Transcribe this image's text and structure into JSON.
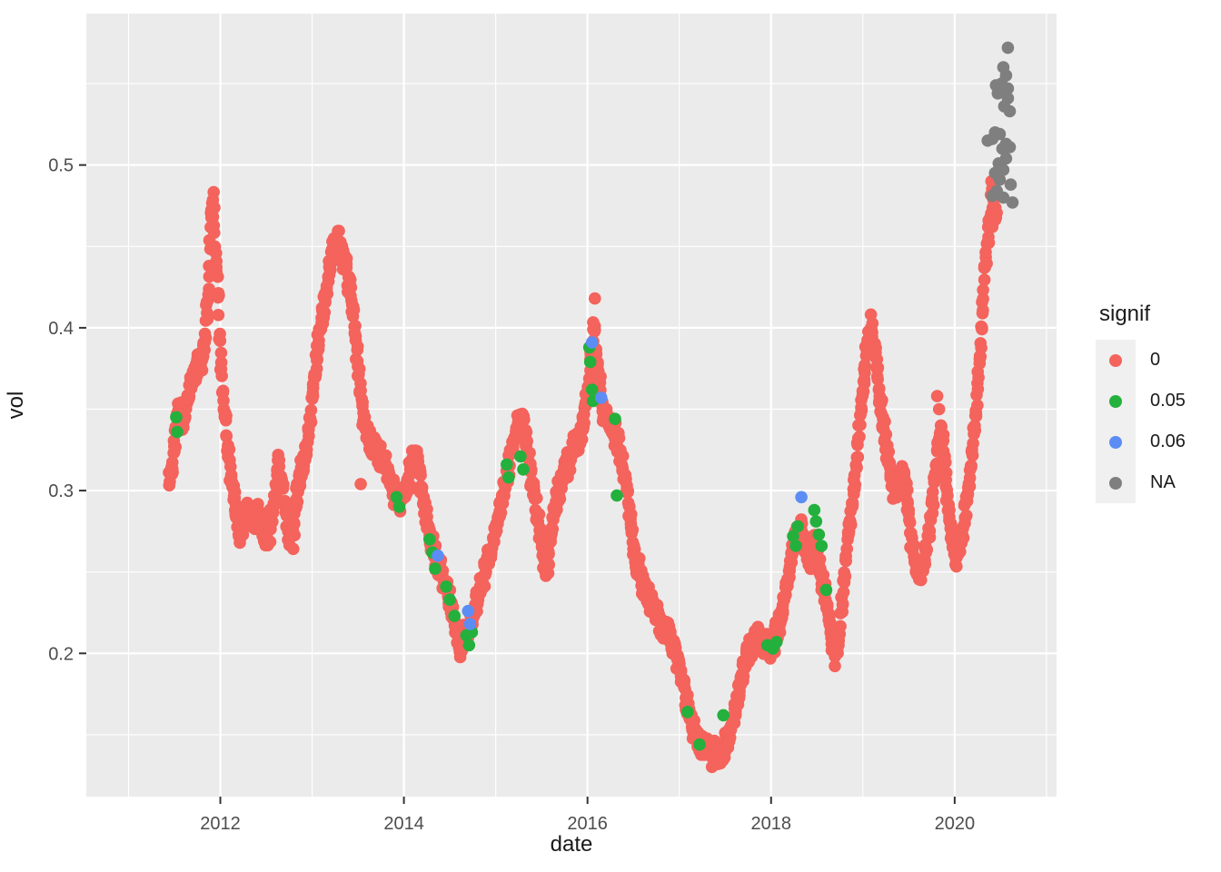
{
  "chart_data": {
    "type": "scatter",
    "title": "",
    "xlabel": "date",
    "ylabel": "vol",
    "legend_title": "signif",
    "legend_position": "right",
    "grid": true,
    "x_tick_labels": [
      "2012",
      "2014",
      "2016",
      "2018",
      "2020"
    ],
    "x_tick_values": [
      2012,
      2014,
      2016,
      2018,
      2020
    ],
    "x_minor_ticks": [
      2011,
      2013,
      2015,
      2017,
      2019,
      2021
    ],
    "y_tick_labels": [
      "0.2",
      "0.3",
      "0.4",
      "0.5"
    ],
    "y_tick_values": [
      0.2,
      0.3,
      0.4,
      0.5
    ],
    "y_minor_ticks": [
      0.15,
      0.25,
      0.35,
      0.45,
      0.55
    ],
    "xlim": [
      2010.54,
      2021.11
    ],
    "ylim": [
      0.112,
      0.593
    ],
    "series": [
      {
        "name": "0",
        "color": "#f4635c",
        "trend_keypoints": [
          [
            2011.44,
            0.306
          ],
          [
            2011.48,
            0.32
          ],
          [
            2011.52,
            0.34
          ],
          [
            2011.56,
            0.352
          ],
          [
            2011.6,
            0.345
          ],
          [
            2011.64,
            0.355
          ],
          [
            2011.68,
            0.365
          ],
          [
            2011.72,
            0.372
          ],
          [
            2011.76,
            0.383
          ],
          [
            2011.8,
            0.378
          ],
          [
            2011.84,
            0.4
          ],
          [
            2011.87,
            0.42
          ],
          [
            2011.9,
            0.47
          ],
          [
            2011.92,
            0.48
          ],
          [
            2011.94,
            0.455
          ],
          [
            2011.97,
            0.43
          ],
          [
            2012.0,
            0.385
          ],
          [
            2012.04,
            0.355
          ],
          [
            2012.08,
            0.33
          ],
          [
            2012.12,
            0.305
          ],
          [
            2012.17,
            0.288
          ],
          [
            2012.21,
            0.272
          ],
          [
            2012.28,
            0.29
          ],
          [
            2012.35,
            0.28
          ],
          [
            2012.42,
            0.287
          ],
          [
            2012.5,
            0.267
          ],
          [
            2012.57,
            0.285
          ],
          [
            2012.63,
            0.318
          ],
          [
            2012.68,
            0.305
          ],
          [
            2012.73,
            0.277
          ],
          [
            2012.78,
            0.267
          ],
          [
            2012.83,
            0.295
          ],
          [
            2012.88,
            0.313
          ],
          [
            2012.94,
            0.325
          ],
          [
            2013.0,
            0.355
          ],
          [
            2013.05,
            0.383
          ],
          [
            2013.1,
            0.402
          ],
          [
            2013.15,
            0.422
          ],
          [
            2013.2,
            0.44
          ],
          [
            2013.26,
            0.456
          ],
          [
            2013.31,
            0.448
          ],
          [
            2013.36,
            0.44
          ],
          [
            2013.41,
            0.425
          ],
          [
            2013.46,
            0.403
          ],
          [
            2013.51,
            0.37
          ],
          [
            2013.56,
            0.342
          ],
          [
            2013.62,
            0.33
          ],
          [
            2013.7,
            0.326
          ],
          [
            2013.78,
            0.318
          ],
          [
            2013.85,
            0.308
          ],
          [
            2013.92,
            0.296
          ],
          [
            2014.0,
            0.296
          ],
          [
            2014.06,
            0.308
          ],
          [
            2014.12,
            0.322
          ],
          [
            2014.16,
            0.315
          ],
          [
            2014.2,
            0.297
          ],
          [
            2014.25,
            0.283
          ],
          [
            2014.3,
            0.268
          ],
          [
            2014.36,
            0.258
          ],
          [
            2014.42,
            0.25
          ],
          [
            2014.47,
            0.238
          ],
          [
            2014.52,
            0.228
          ],
          [
            2014.57,
            0.213
          ],
          [
            2014.62,
            0.204
          ],
          [
            2014.67,
            0.212
          ],
          [
            2014.72,
            0.218
          ],
          [
            2014.78,
            0.228
          ],
          [
            2014.85,
            0.242
          ],
          [
            2014.92,
            0.256
          ],
          [
            2014.98,
            0.27
          ],
          [
            2015.05,
            0.29
          ],
          [
            2015.12,
            0.31
          ],
          [
            2015.18,
            0.328
          ],
          [
            2015.24,
            0.34
          ],
          [
            2015.3,
            0.345
          ],
          [
            2015.34,
            0.328
          ],
          [
            2015.38,
            0.312
          ],
          [
            2015.44,
            0.29
          ],
          [
            2015.5,
            0.268
          ],
          [
            2015.55,
            0.25
          ],
          [
            2015.6,
            0.27
          ],
          [
            2015.66,
            0.295
          ],
          [
            2015.73,
            0.308
          ],
          [
            2015.8,
            0.318
          ],
          [
            2015.88,
            0.328
          ],
          [
            2015.95,
            0.34
          ],
          [
            2016.0,
            0.36
          ],
          [
            2016.04,
            0.382
          ],
          [
            2016.07,
            0.4
          ],
          [
            2016.1,
            0.378
          ],
          [
            2016.14,
            0.36
          ],
          [
            2016.18,
            0.348
          ],
          [
            2016.25,
            0.342
          ],
          [
            2016.32,
            0.333
          ],
          [
            2016.38,
            0.315
          ],
          [
            2016.43,
            0.3
          ],
          [
            2016.48,
            0.278
          ],
          [
            2016.53,
            0.257
          ],
          [
            2016.6,
            0.243
          ],
          [
            2016.68,
            0.232
          ],
          [
            2016.76,
            0.222
          ],
          [
            2016.84,
            0.215
          ],
          [
            2016.92,
            0.207
          ],
          [
            2016.98,
            0.196
          ],
          [
            2017.03,
            0.183
          ],
          [
            2017.08,
            0.17
          ],
          [
            2017.13,
            0.158
          ],
          [
            2017.2,
            0.148
          ],
          [
            2017.28,
            0.142
          ],
          [
            2017.36,
            0.139
          ],
          [
            2017.44,
            0.137
          ],
          [
            2017.5,
            0.143
          ],
          [
            2017.56,
            0.152
          ],
          [
            2017.62,
            0.168
          ],
          [
            2017.68,
            0.185
          ],
          [
            2017.74,
            0.198
          ],
          [
            2017.8,
            0.205
          ],
          [
            2017.86,
            0.21
          ],
          [
            2017.92,
            0.207
          ],
          [
            2017.98,
            0.203
          ],
          [
            2018.04,
            0.207
          ],
          [
            2018.1,
            0.22
          ],
          [
            2018.16,
            0.24
          ],
          [
            2018.22,
            0.26
          ],
          [
            2018.27,
            0.272
          ],
          [
            2018.32,
            0.277
          ],
          [
            2018.37,
            0.265
          ],
          [
            2018.42,
            0.255
          ],
          [
            2018.46,
            0.27
          ],
          [
            2018.5,
            0.262
          ],
          [
            2018.55,
            0.247
          ],
          [
            2018.6,
            0.232
          ],
          [
            2018.65,
            0.215
          ],
          [
            2018.7,
            0.199
          ],
          [
            2018.74,
            0.208
          ],
          [
            2018.78,
            0.235
          ],
          [
            2018.82,
            0.262
          ],
          [
            2018.86,
            0.283
          ],
          [
            2018.9,
            0.3
          ],
          [
            2018.95,
            0.33
          ],
          [
            2019.0,
            0.362
          ],
          [
            2019.04,
            0.385
          ],
          [
            2019.08,
            0.402
          ],
          [
            2019.12,
            0.388
          ],
          [
            2019.16,
            0.37
          ],
          [
            2019.2,
            0.352
          ],
          [
            2019.24,
            0.335
          ],
          [
            2019.28,
            0.317
          ],
          [
            2019.33,
            0.303
          ],
          [
            2019.38,
            0.3
          ],
          [
            2019.43,
            0.312
          ],
          [
            2019.47,
            0.3
          ],
          [
            2019.52,
            0.275
          ],
          [
            2019.57,
            0.255
          ],
          [
            2019.62,
            0.247
          ],
          [
            2019.67,
            0.258
          ],
          [
            2019.72,
            0.275
          ],
          [
            2019.77,
            0.3
          ],
          [
            2019.82,
            0.325
          ],
          [
            2019.86,
            0.34
          ],
          [
            2019.9,
            0.31
          ],
          [
            2019.94,
            0.285
          ],
          [
            2019.98,
            0.268
          ],
          [
            2020.02,
            0.258
          ],
          [
            2020.06,
            0.266
          ],
          [
            2020.1,
            0.28
          ],
          [
            2020.14,
            0.298
          ],
          [
            2020.18,
            0.318
          ],
          [
            2020.22,
            0.342
          ],
          [
            2020.26,
            0.372
          ],
          [
            2020.3,
            0.41
          ],
          [
            2020.33,
            0.435
          ],
          [
            2020.36,
            0.455
          ],
          [
            2020.39,
            0.47
          ],
          [
            2020.42,
            0.48
          ],
          [
            2020.44,
            0.473
          ],
          [
            2020.46,
            0.465
          ]
        ],
        "extra_points": [
          [
            2016.08,
            0.418
          ],
          [
            2013.53,
            0.304
          ],
          [
            2019.81,
            0.358
          ],
          [
            2019.83,
            0.35
          ],
          [
            2020.4,
            0.49
          ],
          [
            2020.43,
            0.487
          ],
          [
            2020.41,
            0.462
          ]
        ]
      },
      {
        "name": "0.05",
        "color": "#24b03c",
        "points": [
          [
            2011.52,
            0.345
          ],
          [
            2011.53,
            0.336
          ],
          [
            2013.92,
            0.296
          ],
          [
            2013.95,
            0.29
          ],
          [
            2014.28,
            0.27
          ],
          [
            2014.31,
            0.262
          ],
          [
            2014.34,
            0.252
          ],
          [
            2014.46,
            0.241
          ],
          [
            2014.5,
            0.233
          ],
          [
            2014.55,
            0.223
          ],
          [
            2014.68,
            0.211
          ],
          [
            2014.71,
            0.205
          ],
          [
            2014.74,
            0.213
          ],
          [
            2015.12,
            0.316
          ],
          [
            2015.14,
            0.308
          ],
          [
            2015.27,
            0.321
          ],
          [
            2015.3,
            0.313
          ],
          [
            2016.02,
            0.388
          ],
          [
            2016.03,
            0.379
          ],
          [
            2016.05,
            0.362
          ],
          [
            2016.06,
            0.355
          ],
          [
            2016.3,
            0.344
          ],
          [
            2016.32,
            0.297
          ],
          [
            2017.09,
            0.164
          ],
          [
            2017.22,
            0.144
          ],
          [
            2017.48,
            0.162
          ],
          [
            2017.96,
            0.205
          ],
          [
            2018.02,
            0.203
          ],
          [
            2018.06,
            0.207
          ],
          [
            2018.24,
            0.272
          ],
          [
            2018.27,
            0.266
          ],
          [
            2018.29,
            0.278
          ],
          [
            2018.47,
            0.288
          ],
          [
            2018.49,
            0.281
          ],
          [
            2018.52,
            0.273
          ],
          [
            2018.55,
            0.266
          ],
          [
            2018.6,
            0.239
          ]
        ]
      },
      {
        "name": "0.06",
        "color": "#5b8df5",
        "points": [
          [
            2014.37,
            0.26
          ],
          [
            2014.7,
            0.226
          ],
          [
            2014.72,
            0.218
          ],
          [
            2016.05,
            0.391
          ],
          [
            2016.15,
            0.357
          ],
          [
            2018.33,
            0.296
          ]
        ]
      },
      {
        "name": "NA",
        "color": "#7f7f7f",
        "points": [
          [
            2020.58,
            0.572
          ],
          [
            2020.53,
            0.56
          ],
          [
            2020.56,
            0.555
          ],
          [
            2020.51,
            0.55
          ],
          [
            2020.58,
            0.547
          ],
          [
            2020.45,
            0.549
          ],
          [
            2020.47,
            0.544
          ],
          [
            2020.58,
            0.541
          ],
          [
            2020.54,
            0.536
          ],
          [
            2020.6,
            0.533
          ],
          [
            2020.44,
            0.52
          ],
          [
            2020.49,
            0.519
          ],
          [
            2020.41,
            0.516
          ],
          [
            2020.36,
            0.515
          ],
          [
            2020.56,
            0.513
          ],
          [
            2020.6,
            0.511
          ],
          [
            2020.52,
            0.51
          ],
          [
            2020.56,
            0.504
          ],
          [
            2020.48,
            0.501
          ],
          [
            2020.53,
            0.497
          ],
          [
            2020.44,
            0.495
          ],
          [
            2020.49,
            0.491
          ],
          [
            2020.61,
            0.488
          ],
          [
            2020.46,
            0.484
          ],
          [
            2020.41,
            0.481
          ],
          [
            2020.63,
            0.477
          ],
          [
            2020.53,
            0.48
          ]
        ]
      }
    ]
  },
  "theme": {
    "panel_background": "#ebebeb",
    "grid_color": "#ffffff",
    "tick_mark_color": "#333333",
    "tick_label_color": "#4d4d4d",
    "axis_title_color": "#1a1a1a",
    "legend_key_background": "#f0f0f0",
    "page_background": "#ffffff"
  }
}
